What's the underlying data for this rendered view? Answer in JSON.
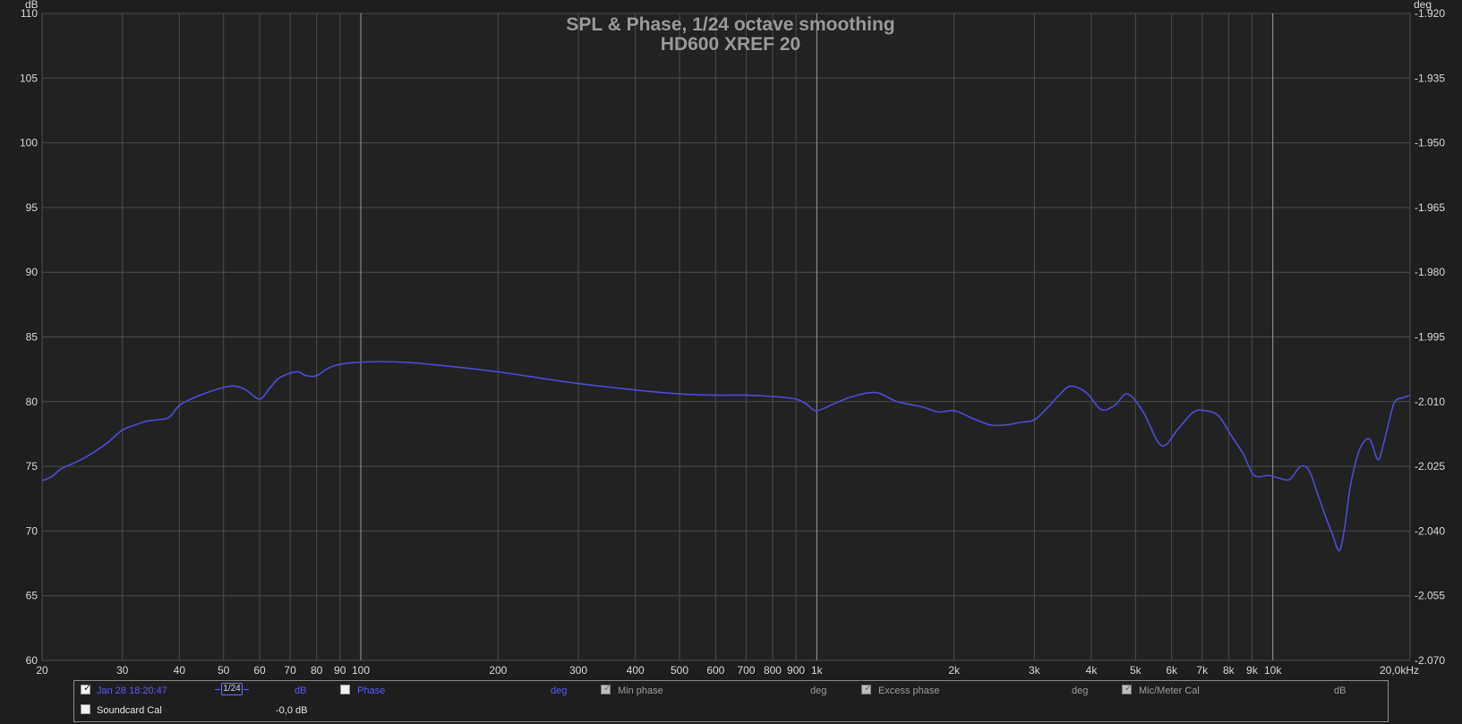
{
  "chart_data": {
    "type": "line",
    "title": "SPL & Phase, 1/24 octave smoothing",
    "subtitle": "HD600 XREF 20",
    "xlabel": "",
    "left_unit": "dB",
    "right_unit": "deg",
    "x_scale": "log",
    "xlim": [
      20,
      20000
    ],
    "ylim": [
      60,
      110
    ],
    "y2lim": [
      -2.07,
      -1.92
    ],
    "grid": true,
    "x_ticks": [
      20,
      30,
      40,
      50,
      60,
      70,
      80,
      90,
      100,
      200,
      300,
      400,
      500,
      600,
      700,
      800,
      900,
      1000,
      2000,
      3000,
      4000,
      5000,
      6000,
      7000,
      8000,
      9000,
      10000,
      20000
    ],
    "x_tick_labels": [
      "20",
      "30",
      "40",
      "50",
      "60",
      "70",
      "80",
      "90",
      "100",
      "200",
      "300",
      "400",
      "500",
      "600",
      "700",
      "800",
      "900",
      "1k",
      "2k",
      "3k",
      "4k",
      "5k",
      "6k",
      "7k",
      "8k",
      "9k",
      "10k",
      "20,0kHz"
    ],
    "y_ticks": [
      110,
      105,
      100,
      95,
      90,
      85,
      80,
      75,
      70,
      65,
      60
    ],
    "y_tick_labels": [
      "110",
      "105",
      "100",
      "95",
      "90",
      "85",
      "80",
      "75",
      "70",
      "65",
      "60"
    ],
    "y2_tick_labels": [
      "-1.920",
      "-1.935",
      "-1.950",
      "-1.965",
      "-1.980",
      "-1.995",
      "-2.010",
      "-2.025",
      "-2.040",
      "-2.055",
      "-2.070"
    ],
    "series": [
      {
        "color": "#4b4bd6",
        "x": [
          20,
          21,
          22,
          24,
          26,
          28,
          30,
          32,
          34,
          36,
          38,
          40,
          43,
          46,
          50,
          53,
          56,
          60,
          63,
          66,
          70,
          73,
          76,
          80,
          84,
          88,
          95,
          110,
          130,
          160,
          200,
          250,
          300,
          400,
          500,
          600,
          700,
          800,
          900,
          950,
          1000,
          1100,
          1200,
          1350,
          1500,
          1700,
          1850,
          2000,
          2200,
          2400,
          2600,
          2800,
          3000,
          3200,
          3400,
          3600,
          3900,
          4200,
          4500,
          4800,
          5200,
          5700,
          6200,
          6700,
          7100,
          7600,
          8100,
          8600,
          9000,
          9300,
          9800,
          10300,
          10900,
          11500,
          12000,
          12500,
          13000,
          13500,
          14000,
          14400,
          14800,
          15500,
          16300,
          17000,
          17500,
          18000,
          18500,
          19300,
          20000
        ],
        "y": [
          73.9,
          74.2,
          74.8,
          75.4,
          76.1,
          76.9,
          77.8,
          78.2,
          78.5,
          78.6,
          78.8,
          79.7,
          80.3,
          80.7,
          81.1,
          81.2,
          80.9,
          80.2,
          81.0,
          81.8,
          82.2,
          82.3,
          82.0,
          82.0,
          82.5,
          82.8,
          83.0,
          83.1,
          83.0,
          82.7,
          82.3,
          81.8,
          81.4,
          80.9,
          80.6,
          80.5,
          80.5,
          80.4,
          80.2,
          79.8,
          79.3,
          79.9,
          80.4,
          80.7,
          80.0,
          79.6,
          79.2,
          79.3,
          78.7,
          78.2,
          78.2,
          78.4,
          78.6,
          79.5,
          80.5,
          81.2,
          80.7,
          79.4,
          79.7,
          80.6,
          79.2,
          76.6,
          77.9,
          79.2,
          79.3,
          78.9,
          77.4,
          76.0,
          74.5,
          74.2,
          74.3,
          74.1,
          74.0,
          75.0,
          74.7,
          73.0,
          71.3,
          69.8,
          68.5,
          70.5,
          73.5,
          76.3,
          77.1,
          75.5,
          76.8,
          78.5,
          80.0,
          80.3,
          80.5
        ]
      }
    ]
  },
  "legend": {
    "measurement_checked": "✓",
    "measurement_name": "Jan 28 18:20:47",
    "measurement_smoothing_label": "1/24",
    "measurement_unit": "dB",
    "phase_label": "Phase",
    "phase_unit": "deg",
    "min_phase_checked": "✓",
    "min_phase_label": "Min phase",
    "min_phase_unit": "deg",
    "excess_phase_checked": "✓",
    "excess_phase_label": "Excess phase",
    "excess_phase_unit": "deg",
    "mic_cal_checked": "✓",
    "mic_cal_label": "Mic/Meter Cal",
    "mic_cal_unit": "dB",
    "soundcard_cal_label": "Soundcard Cal",
    "soundcard_cal_value": "-0,0 dB"
  }
}
